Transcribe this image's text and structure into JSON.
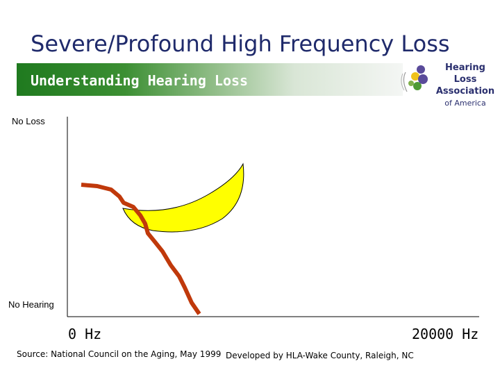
{
  "slide": {
    "title": "Severe/Profound High Frequency Loss",
    "banner": "Understanding Hearing Loss",
    "logo": {
      "line1": "Hearing Loss",
      "line2": "Association",
      "line3": "of America"
    }
  },
  "diagram": {
    "y_top_label": "No Loss",
    "y_bottom_label": "No Hearing",
    "x_left_label": "0 Hz",
    "x_right_label": "20000 Hz",
    "speech_banana_color": "#ffff00",
    "hearing_curve_color": "#c0390b"
  },
  "footer": {
    "source": "Source: National Council on the Aging, May 1999",
    "credit": "Developed by HLA-Wake County, Raleigh, NC"
  }
}
